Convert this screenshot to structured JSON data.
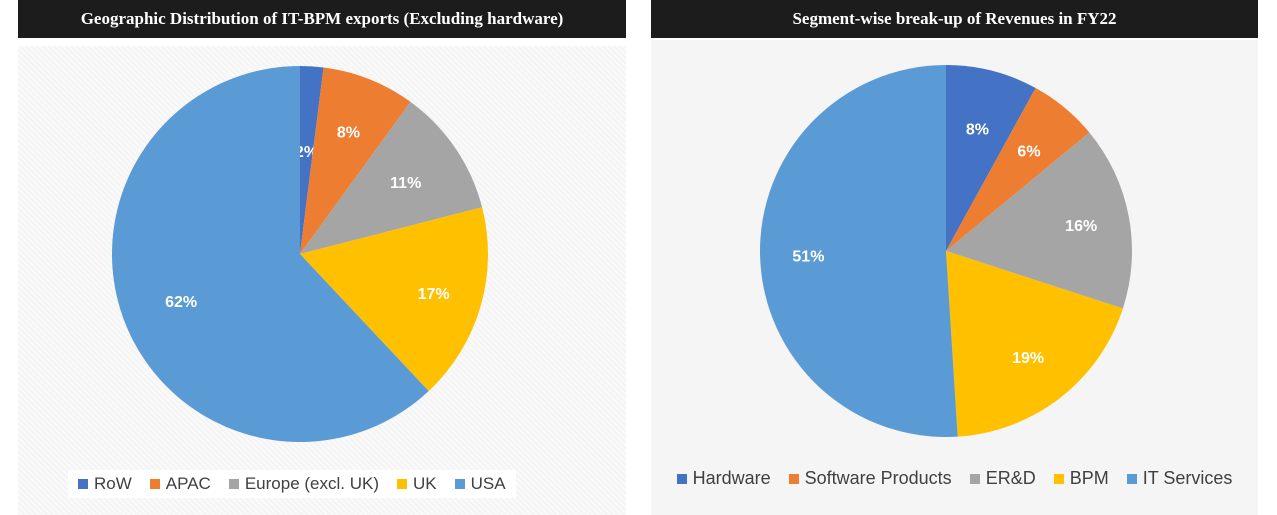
{
  "chart_data": [
    {
      "type": "pie",
      "title": "Geographic Distribution of IT-BPM exports (Excluding hardware)",
      "categories": [
        "RoW",
        "APAC",
        "Europe (excl. UK)",
        "UK",
        "USA"
      ],
      "values": [
        2,
        8,
        11,
        17,
        62
      ],
      "labels": [
        "2%",
        "8%",
        "11%",
        "17%",
        "62%"
      ],
      "colors": [
        "#4472c4",
        "#ed7d31",
        "#a5a5a5",
        "#ffc000",
        "#5b9bd5"
      ],
      "legend_position": "bottom"
    },
    {
      "type": "pie",
      "title": "Segment-wise break-up of Revenues in FY22",
      "categories": [
        "Hardware",
        "Software Products",
        "ER&D",
        "BPM",
        "IT Services"
      ],
      "values": [
        8,
        6,
        16,
        19,
        51
      ],
      "labels": [
        "8%",
        "6%",
        "16%",
        "19%",
        "51%"
      ],
      "colors": [
        "#4472c4",
        "#ed7d31",
        "#a5a5a5",
        "#ffc000",
        "#5b9bd5"
      ],
      "legend_position": "bottom"
    }
  ]
}
